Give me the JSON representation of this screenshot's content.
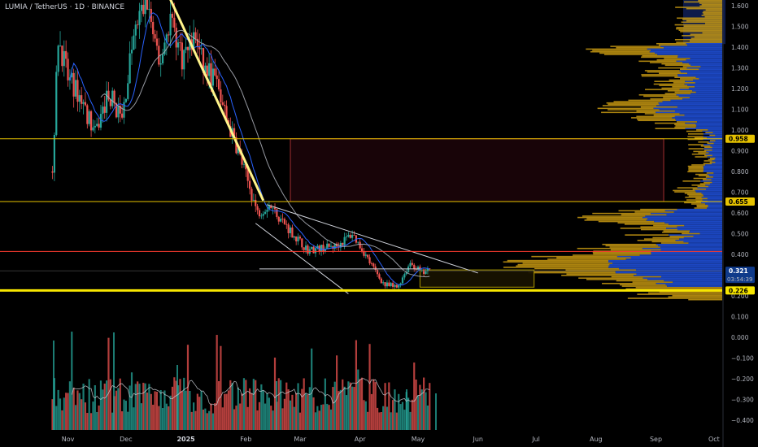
{
  "symbol_title": "LUMIA / TetherUS · 1D · BINANCE",
  "colors": {
    "up": "#26a69a",
    "down": "#ef5350",
    "trend": "#fff48a",
    "support": "#f7e600",
    "resistance": "#ff3b30",
    "level": "#e6c200",
    "zone_fill": "#1a0509",
    "zone_border": "#b8a200",
    "vp_blue": "#1f4fd6",
    "vp_gold": "#c99a12",
    "ma_blue": "#2962ff",
    "ma_grey": "#b2b5be"
  },
  "chart_data": {
    "type": "candlestick",
    "title": "LUMIA / TetherUS · 1D · BINANCE",
    "price_axis_ticks": [
      "1.600",
      "1.500",
      "1.400",
      "1.300",
      "1.200",
      "1.100",
      "1.000",
      "0.900",
      "0.800",
      "0.700",
      "0.600",
      "0.500",
      "0.400",
      "0.300",
      "0.200",
      "0.100",
      "0.000",
      "−0.100",
      "−0.200",
      "−0.300",
      "−0.400"
    ],
    "price_axis_range": [
      -0.44,
      1.64
    ],
    "x_axis_labels": [
      "Nov",
      "Dec",
      "2025",
      "Feb",
      "Mar",
      "Apr",
      "May",
      "Jun",
      "Jul",
      "Aug",
      "Sep",
      "Oct"
    ],
    "time_range": [
      "2024-10-20",
      "2025-10-04"
    ],
    "price_path": [
      [
        "2024-10-24",
        0.8
      ],
      [
        "2024-10-27",
        1.45
      ],
      [
        "2024-11-01",
        1.25
      ],
      [
        "2024-11-08",
        1.15
      ],
      [
        "2024-11-15",
        0.98
      ],
      [
        "2024-11-22",
        1.18
      ],
      [
        "2024-11-29",
        1.05
      ],
      [
        "2024-12-04",
        1.4
      ],
      [
        "2024-12-08",
        1.55
      ],
      [
        "2024-12-12",
        1.62
      ],
      [
        "2024-12-18",
        1.3
      ],
      [
        "2024-12-24",
        1.55
      ],
      [
        "2024-12-30",
        1.35
      ],
      [
        "2025-01-06",
        1.45
      ],
      [
        "2025-01-10",
        1.3
      ],
      [
        "2025-01-16",
        1.25
      ],
      [
        "2025-01-22",
        1.05
      ],
      [
        "2025-01-28",
        0.9
      ],
      [
        "2025-02-03",
        0.72
      ],
      [
        "2025-02-07",
        0.6
      ],
      [
        "2025-02-13",
        0.64
      ],
      [
        "2025-02-20",
        0.56
      ],
      [
        "2025-02-27",
        0.48
      ],
      [
        "2025-03-05",
        0.42
      ],
      [
        "2025-03-12",
        0.43
      ],
      [
        "2025-03-20",
        0.44
      ],
      [
        "2025-03-28",
        0.5
      ],
      [
        "2025-04-03",
        0.41
      ],
      [
        "2025-04-08",
        0.33
      ],
      [
        "2025-04-14",
        0.25
      ],
      [
        "2025-04-20",
        0.24
      ],
      [
        "2025-04-27",
        0.36
      ],
      [
        "2025-05-03",
        0.31
      ],
      [
        "2025-05-07",
        0.32
      ]
    ],
    "horizontal_levels": [
      {
        "price": 0.958,
        "label": "0.958",
        "role": "level"
      },
      {
        "price": 0.655,
        "label": "0.655",
        "role": "level"
      },
      {
        "price": 0.414,
        "role": "resistance"
      },
      {
        "price": 0.226,
        "label": "0.226",
        "role": "support"
      }
    ],
    "last_price": {
      "value": "0.321",
      "countdown": "03:54:39"
    },
    "zones": [
      {
        "from": "2025-02-24",
        "to": "2025-09-05",
        "top": 0.958,
        "bottom": 0.655
      },
      {
        "from": "2025-05-02",
        "to": "2025-06-30",
        "top": 0.325,
        "bottom": 0.242
      }
    ],
    "trendlines": [
      {
        "from": [
          "2024-12-23",
          1.65
        ],
        "to": [
          "2025-02-10",
          0.66
        ],
        "style": "thick"
      },
      {
        "from": [
          "2025-02-12",
          0.64
        ],
        "to": [
          "2025-06-01",
          0.31
        ],
        "style": "thin"
      },
      {
        "from": [
          "2025-02-06",
          0.55
        ],
        "to": [
          "2025-03-26",
          0.21
        ],
        "style": "thin"
      },
      {
        "from": [
          "2025-02-08",
          0.33
        ],
        "to": [
          "2025-05-02",
          0.33
        ],
        "style": "thin"
      }
    ],
    "volume_profile": "fixed-range volume profile on right side, blue/gold histogram",
    "volume_panel": true
  }
}
